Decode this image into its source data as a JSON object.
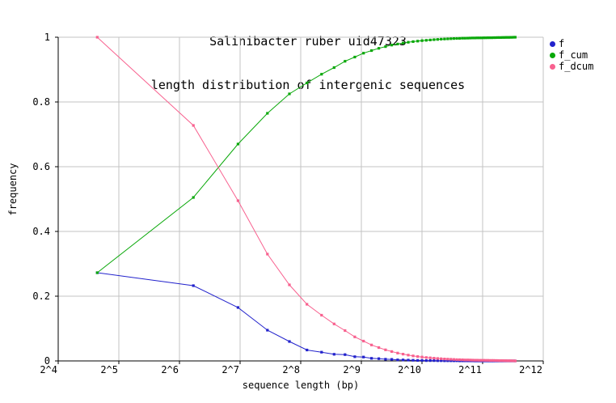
{
  "title_line1": "Salinibacter ruber uid47323",
  "title_line2": "length distribution of intergenic sequences",
  "axes": {
    "x_label": "sequence length (bp)",
    "y_label": "frequency",
    "x_tick_labels": [
      "2^4",
      "2^5",
      "2^6",
      "2^7",
      "2^8",
      "2^9",
      "2^10",
      "2^11",
      "2^12"
    ],
    "x_tick_log2": [
      4,
      5,
      6,
      7,
      8,
      9,
      10,
      11,
      12
    ],
    "y_tick_labels": [
      "0",
      "0.2",
      "0.4",
      "0.6",
      "0.8",
      "1"
    ],
    "y_ticks": [
      0,
      0.2,
      0.4,
      0.6,
      0.8,
      1
    ]
  },
  "legend": [
    {
      "label": "f",
      "color": "#2222cc"
    },
    {
      "label": "f_cum",
      "color": "#0aa80a"
    },
    {
      "label": "f_dcum",
      "color": "#f8618f"
    }
  ],
  "colors": {
    "background": "#ffffff",
    "grid": "#c3c3c3",
    "axis": "#000000",
    "text": "#000000",
    "f": "#2222cc",
    "f_cum": "#0aa80a",
    "f_dcum": "#f8618f"
  },
  "chart_data": {
    "type": "line",
    "title": "Salinibacter ruber uid47323 — length distribution of intergenic sequences",
    "xlabel": "sequence length (bp)",
    "ylabel": "frequency",
    "x_scale": "log2",
    "xlim_log2": [
      4,
      12
    ],
    "ylim": [
      0,
      1
    ],
    "grid": true,
    "legend_position": "outside-top-right",
    "marker": "square",
    "x": [
      25,
      75,
      125,
      175,
      225,
      275,
      325,
      375,
      425,
      475,
      525,
      575,
      625,
      675,
      725,
      775,
      825,
      875,
      925,
      975,
      1025,
      1075,
      1125,
      1175,
      1225,
      1275,
      1325,
      1375,
      1425,
      1475,
      1525,
      1575,
      1625,
      1675,
      1725,
      1775,
      1825,
      1875,
      1925,
      1975,
      2025,
      2075,
      2125,
      2175,
      2225,
      2275,
      2325,
      2375,
      2425,
      2475,
      2525,
      2575,
      2625,
      2675,
      2725,
      2775,
      2825,
      2875,
      2925,
      2975
    ],
    "series": [
      {
        "name": "f",
        "color": "#2222cc",
        "values": [
          0.2725,
          0.2325,
          0.165,
          0.095,
          0.06,
          0.0337,
          0.027,
          0.0205,
          0.0195,
          0.013,
          0.012,
          0.008,
          0.007,
          0.0052,
          0.0048,
          0.0032,
          0.003,
          0.0025,
          0.002,
          0.0016,
          0.0014,
          0.0011,
          0.001,
          0.0009,
          0.0008,
          0.0007,
          0.0006,
          0.0005,
          0.0005,
          0.0004,
          0.0004,
          0.0003,
          0.0003,
          0.0002,
          0.0002,
          0.0002,
          0.0002,
          0.0001,
          0.0001,
          0.0001,
          0.0001,
          0.0001,
          0.0001,
          0.0001,
          0.0001,
          0.0001,
          0.0001,
          0.0001,
          0.0001,
          0.0001,
          0.0001,
          0.0001,
          0.0001,
          0.0001,
          0.0001,
          0.0001,
          0.0001,
          0.0001,
          0.0001,
          0.0001
        ]
      },
      {
        "name": "f_cum",
        "color": "#0aa80a",
        "values": [
          0.2725,
          0.505,
          0.67,
          0.765,
          0.825,
          0.8587,
          0.8857,
          0.9062,
          0.9257,
          0.9387,
          0.9507,
          0.9587,
          0.9657,
          0.9709,
          0.9757,
          0.9789,
          0.9819,
          0.9844,
          0.9864,
          0.988,
          0.9894,
          0.9905,
          0.9915,
          0.9924,
          0.9932,
          0.9939,
          0.9945,
          0.995,
          0.9955,
          0.9959,
          0.9963,
          0.9966,
          0.9969,
          0.9971,
          0.9973,
          0.9975,
          0.9977,
          0.9978,
          0.9979,
          0.998,
          0.9981,
          0.9982,
          0.9983,
          0.9984,
          0.9985,
          0.9986,
          0.9987,
          0.9988,
          0.9989,
          0.999,
          0.9991,
          0.9992,
          0.9993,
          0.9994,
          0.9995,
          0.9996,
          0.9997,
          0.9998,
          0.9999,
          1.0
        ]
      },
      {
        "name": "f_dcum",
        "color": "#f8618f",
        "values": [
          1.0,
          0.7275,
          0.495,
          0.33,
          0.235,
          0.175,
          0.1413,
          0.1143,
          0.0938,
          0.0743,
          0.0613,
          0.0493,
          0.0413,
          0.0343,
          0.0291,
          0.0243,
          0.0211,
          0.0181,
          0.0156,
          0.0136,
          0.012,
          0.0106,
          0.0095,
          0.0085,
          0.0076,
          0.0068,
          0.0061,
          0.0055,
          0.005,
          0.0045,
          0.0041,
          0.0037,
          0.0034,
          0.0031,
          0.0029,
          0.0027,
          0.0025,
          0.0023,
          0.0022,
          0.0021,
          0.002,
          0.0019,
          0.0018,
          0.0017,
          0.0016,
          0.0015,
          0.0014,
          0.0013,
          0.0012,
          0.0011,
          0.001,
          0.0009,
          0.0008,
          0.0007,
          0.0006,
          0.0005,
          0.0004,
          0.0003,
          0.0002,
          0.0001
        ]
      }
    ]
  }
}
